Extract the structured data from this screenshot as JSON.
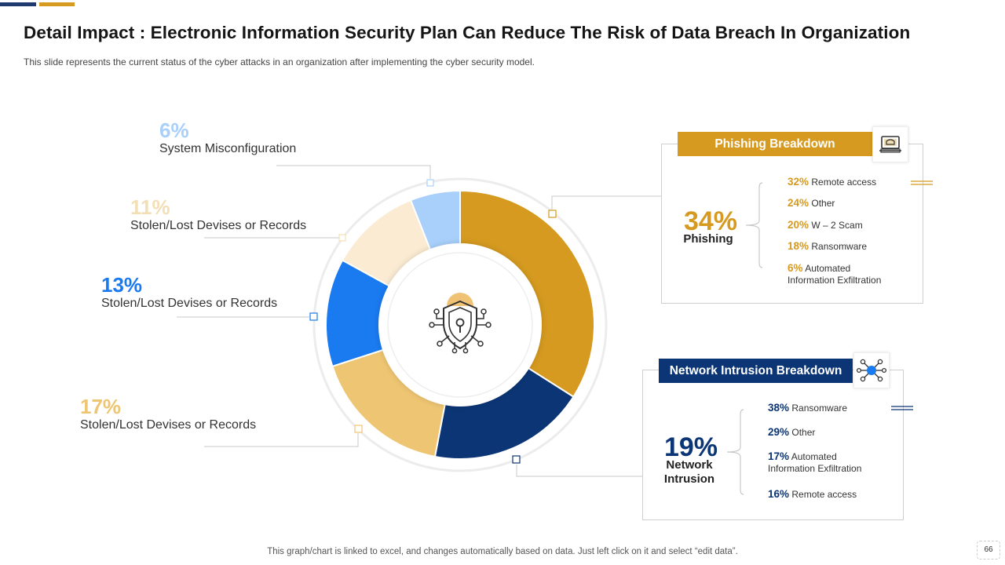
{
  "header": {
    "title": "Detail Impact : Electronic Information Security Plan Can Reduce The Risk of Data Breach In Organization",
    "subtitle": "This slide represents the current status of the cyber attacks in an organization  after implementing the cyber security model."
  },
  "chart_data": {
    "type": "pie",
    "variant": "donut",
    "slices": [
      {
        "name": "Phishing",
        "value": 34,
        "color": "#d59a1f"
      },
      {
        "name": "Network Intrusion",
        "value": 19,
        "color": "#0b3575"
      },
      {
        "name": "Stolen/Lost Devises or Records",
        "value": 17,
        "color": "#eec572"
      },
      {
        "name": "Stolen/Lost Devises or Records",
        "value": 13,
        "color": "#1a7af0"
      },
      {
        "name": "Stolen/Lost Devises or Records",
        "value": 11,
        "color": "#faebd2"
      },
      {
        "name": "System Misconfiguration",
        "value": 6,
        "color": "#a8d0fb"
      }
    ],
    "center_icon": "shield-lock-icon"
  },
  "callouts": {
    "c6": {
      "pct": "6%",
      "label": "System Misconfiguration",
      "color": "#a8d0fb"
    },
    "c11": {
      "pct": "11%",
      "label": "Stolen/Lost Devises or Records",
      "color": "#f3dfb6"
    },
    "c13": {
      "pct": "13%",
      "label": "Stolen/Lost Devises or Records",
      "color": "#1a7af0"
    },
    "c17": {
      "pct": "17%",
      "label": "Stolen/Lost Devises or Records",
      "color": "#eec572"
    }
  },
  "phishing_panel": {
    "title": "Phishing Breakdown",
    "icon": "computer-hack-icon",
    "big_pct": "34%",
    "big_label": "Phishing",
    "accent": "#d59a1f",
    "items": [
      {
        "pct": "32%",
        "label": "Remote access"
      },
      {
        "pct": "24%",
        "label": "Other"
      },
      {
        "pct": "20%",
        "label": "W – 2 Scam"
      },
      {
        "pct": "18%",
        "label": "Ransomware"
      },
      {
        "pct": "6%",
        "label": "Automated",
        "label2": "Information Exfiltration"
      }
    ]
  },
  "network_panel": {
    "title": "Network Intrusion Breakdown",
    "icon": "network-nodes-icon",
    "big_pct": "19%",
    "big_label_1": "Network",
    "big_label_2": "Intrusion",
    "accent": "#0b3575",
    "items": [
      {
        "pct": "38%",
        "label": "Ransomware"
      },
      {
        "pct": "29%",
        "label": "Other"
      },
      {
        "pct": "17%",
        "label": "Automated",
        "label2": "Information Exfiltration"
      },
      {
        "pct": "16%",
        "label": "Remote access"
      }
    ]
  },
  "footer": {
    "note": "This graph/chart is linked to excel,  and changes automatically based on data. Just left click on it and select “edit data”.",
    "page_number": "66"
  }
}
